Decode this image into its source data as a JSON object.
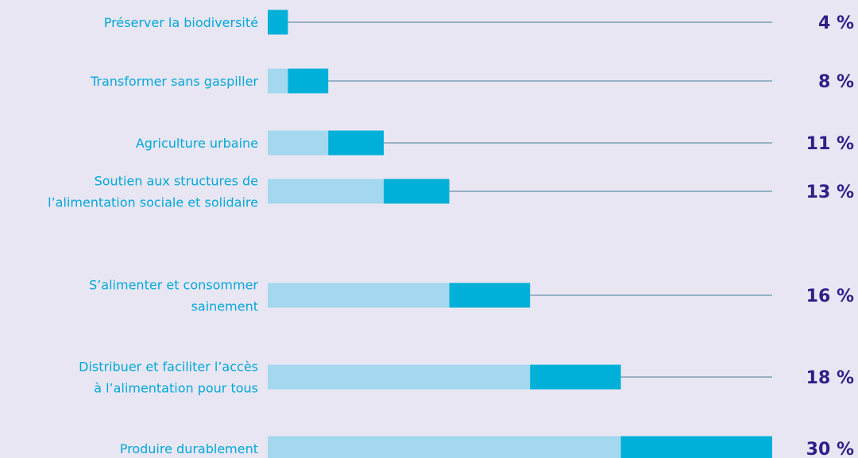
{
  "chart_data": {
    "type": "bar",
    "categories": [
      [
        "Préserver la biodiversité"
      ],
      [
        "Transformer sans gaspiller"
      ],
      [
        "Agriculture urbaine"
      ],
      [
        "Soutien aux structures de",
        "l’alimentation sociale et solidaire"
      ],
      [
        "S’alimenter et consommer",
        "sainement"
      ],
      [
        "Distribuer et faciliter l’accès",
        "à l’alimentation pour tous"
      ],
      [
        "Produire durablement"
      ]
    ],
    "values": [
      4,
      8,
      11,
      13,
      16,
      18,
      30
    ],
    "value_labels": [
      "4 %",
      "8 %",
      "11 %",
      "13 %",
      "16 %",
      "18 %",
      "30 %"
    ],
    "color": "#00b0d8",
    "base_color": "#a3d8ee",
    "line_color": "#7d9fb6",
    "xlim": [
      0,
      100
    ]
  }
}
